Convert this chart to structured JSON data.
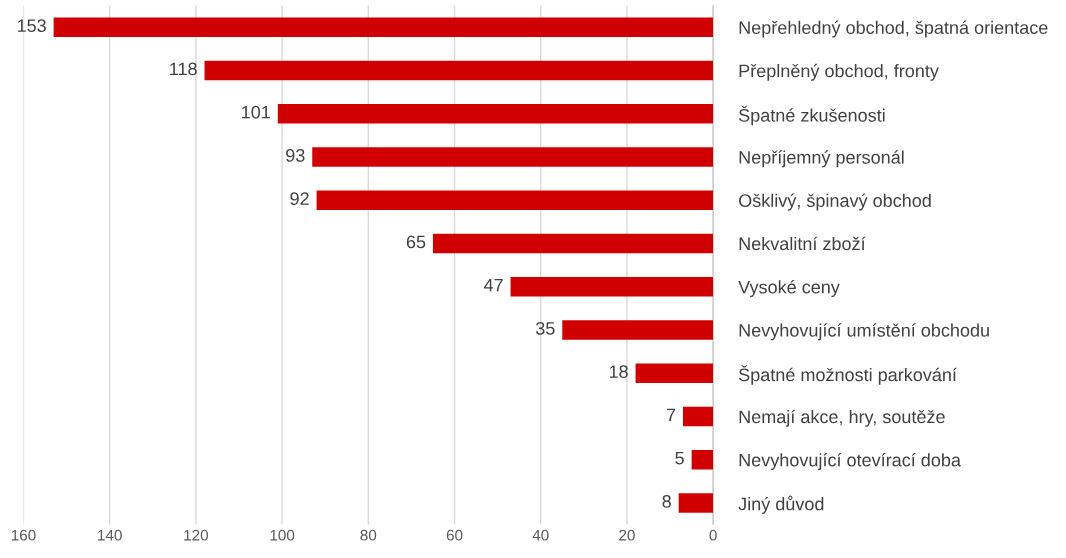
{
  "chart_data": {
    "type": "bar",
    "orientation": "horizontal",
    "categories": [
      "Nepřehledný obchod, špatná orientace",
      "Přeplněný obchod, fronty",
      "Špatné zkušenosti",
      "Nepříjemný personál",
      "Ošklivý, špinavý obchod",
      "Nekvalitní zboží",
      "Vysoké ceny",
      "Nevyhovující umístění obchodu",
      "Špatné možnosti parkování",
      "Nemají akce, hry, soutěže",
      "Nevyhovující otevírací doba",
      "Jiný důvod"
    ],
    "values": [
      153,
      118,
      101,
      93,
      92,
      65,
      47,
      35,
      18,
      7,
      5,
      8
    ],
    "color": "#d10000",
    "xlim": [
      160,
      0
    ],
    "xticks": [
      160,
      140,
      120,
      100,
      80,
      60,
      40,
      20,
      0
    ],
    "grid": "x",
    "data_labels": true
  }
}
